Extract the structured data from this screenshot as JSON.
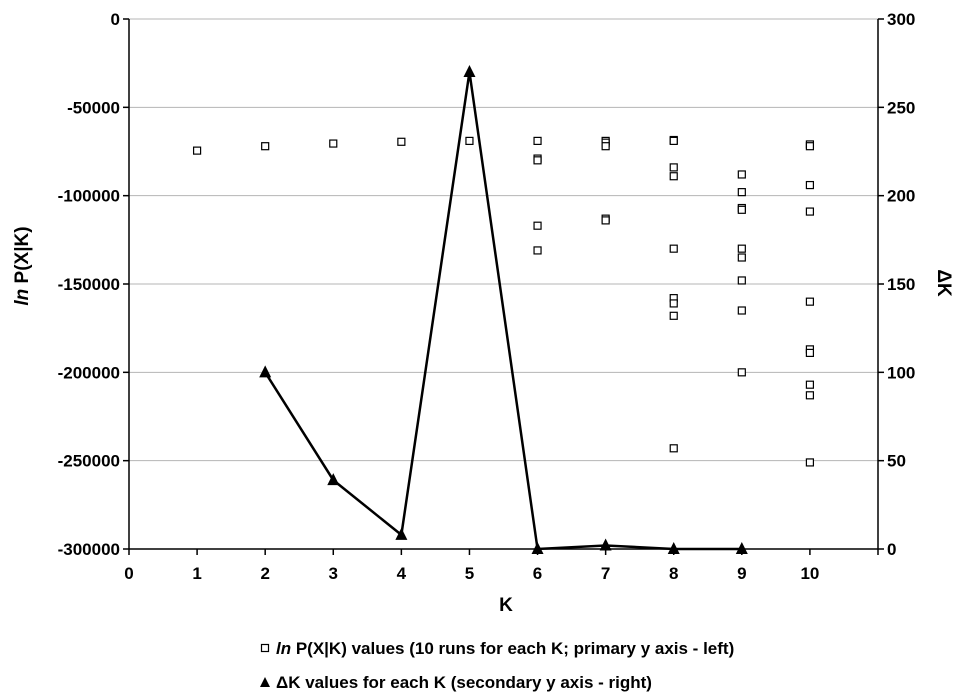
{
  "chart_data": {
    "type": "scatter",
    "title": "",
    "xlabel": "K",
    "ylabel": {
      "italic": "ln",
      "rest": " P(X|K)"
    },
    "y2label": "ΔK",
    "xlim": [
      0,
      11
    ],
    "ylim": [
      -300000,
      0
    ],
    "y2lim": [
      0,
      300
    ],
    "x_ticks": [
      0,
      1,
      2,
      3,
      4,
      5,
      6,
      7,
      8,
      9,
      10
    ],
    "y_ticks": [
      0,
      -50000,
      -100000,
      -150000,
      -200000,
      -250000,
      -300000
    ],
    "y2_ticks": [
      300,
      250,
      200,
      150,
      100,
      50,
      0
    ],
    "y_grid": true,
    "series": [
      {
        "name": {
          "italic": "ln",
          "rest": " P(X|K) values (10 runs for each K; primary y axis - left)"
        },
        "axis": "left",
        "marker": "open-square",
        "points": [
          [
            1,
            -74500
          ],
          [
            2,
            -72000
          ],
          [
            3,
            -70500
          ],
          [
            4,
            -69500
          ],
          [
            5,
            -69000
          ],
          [
            6,
            -69000
          ],
          [
            6,
            -79000
          ],
          [
            6,
            -80000
          ],
          [
            6,
            -117000
          ],
          [
            6,
            -131000
          ],
          [
            7,
            -69000
          ],
          [
            7,
            -70000
          ],
          [
            7,
            -72000
          ],
          [
            7,
            -113000
          ],
          [
            7,
            -114000
          ],
          [
            8,
            -68500
          ],
          [
            8,
            -69000
          ],
          [
            8,
            -84000
          ],
          [
            8,
            -89000
          ],
          [
            8,
            -130000
          ],
          [
            8,
            -158000
          ],
          [
            8,
            -161000
          ],
          [
            8,
            -168000
          ],
          [
            8,
            -243000
          ],
          [
            9,
            -88000
          ],
          [
            9,
            -98000
          ],
          [
            9,
            -107000
          ],
          [
            9,
            -108000
          ],
          [
            9,
            -130000
          ],
          [
            9,
            -135000
          ],
          [
            9,
            -148000
          ],
          [
            9,
            -165000
          ],
          [
            9,
            -200000
          ],
          [
            10,
            -71000
          ],
          [
            10,
            -72000
          ],
          [
            10,
            -94000
          ],
          [
            10,
            -109000
          ],
          [
            10,
            -160000
          ],
          [
            10,
            -187000
          ],
          [
            10,
            -189000
          ],
          [
            10,
            -207000
          ],
          [
            10,
            -213000
          ],
          [
            10,
            -251000
          ]
        ]
      },
      {
        "name": {
          "italic": "",
          "rest": "ΔK values for each K (secondary y axis - right)"
        },
        "axis": "right",
        "marker": "filled-triangle",
        "points": [
          [
            2,
            100
          ],
          [
            3,
            39
          ],
          [
            4,
            8
          ],
          [
            5,
            270
          ],
          [
            6,
            0
          ],
          [
            7,
            2
          ],
          [
            8,
            0
          ],
          [
            9,
            0
          ]
        ]
      }
    ],
    "legend_position": "bottom"
  }
}
